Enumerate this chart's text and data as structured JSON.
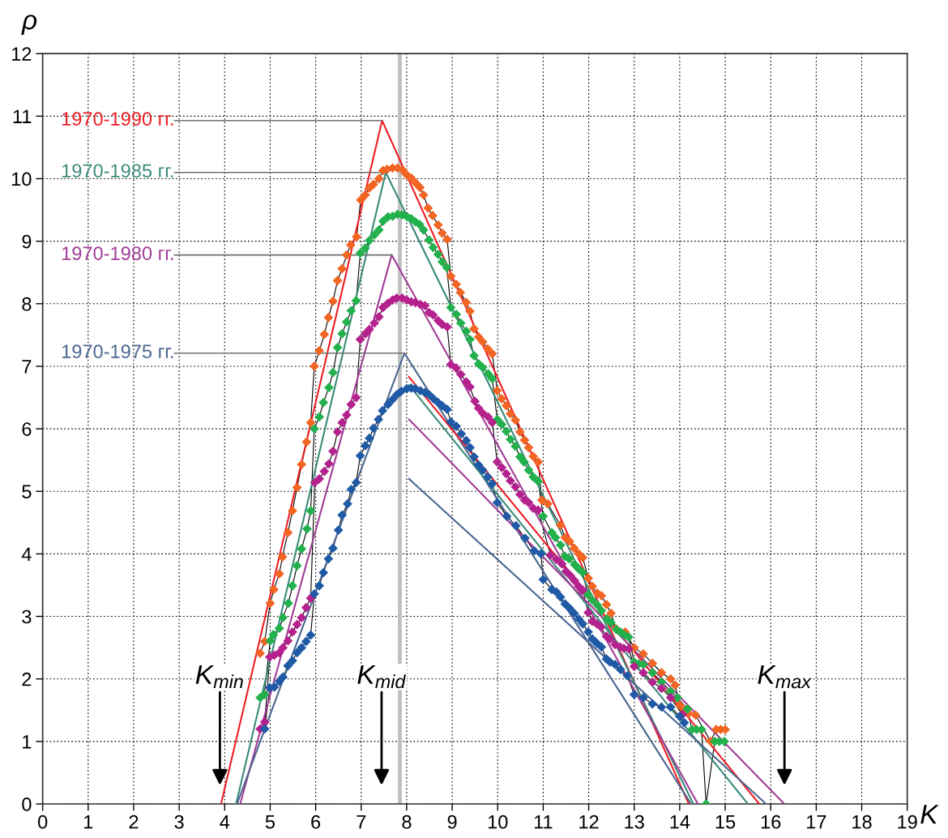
{
  "chart_data": {
    "type": "line",
    "xlabel": "K",
    "ylabel": "ρ",
    "xlim": [
      0,
      19
    ],
    "xticks": [
      0,
      1,
      2,
      3,
      4,
      5,
      6,
      7,
      8,
      9,
      10,
      11,
      12,
      13,
      14,
      15,
      16,
      17,
      18,
      19
    ],
    "ylim": [
      0,
      12
    ],
    "yticks": [
      0,
      1,
      2,
      3,
      4,
      5,
      6,
      7,
      8,
      9,
      10,
      11,
      12
    ],
    "grid": true,
    "legend": false,
    "series": [
      {
        "color": "#f26522",
        "marker": "diamond",
        "x": [
          4.78,
          4.88,
          5.0,
          5.08,
          5.2,
          5.27,
          5.39,
          5.49,
          5.59,
          5.69,
          5.8,
          5.89,
          5.97,
          6.08,
          6.19,
          6.28,
          6.38,
          6.48,
          6.58,
          6.68,
          6.77,
          6.9,
          6.99,
          7.09,
          7.18,
          7.27,
          7.39,
          7.48,
          7.57,
          7.69,
          7.8,
          7.92,
          8.0,
          8.1,
          8.2,
          8.29,
          8.37,
          8.47,
          8.57,
          8.69,
          8.78,
          8.89,
          8.97,
          9.09,
          9.18,
          9.31,
          9.39,
          9.48,
          9.58,
          9.67,
          9.78,
          9.88,
          9.99,
          10.09,
          10.19,
          10.28,
          10.39,
          10.49,
          10.59,
          10.68,
          10.78,
          10.89,
          10.97,
          11.1,
          11.38,
          11.48,
          11.58,
          11.68,
          11.78,
          11.87,
          11.99,
          12.08,
          12.19,
          12.28,
          12.39,
          12.49,
          12.6,
          12.8,
          13.0,
          13.2,
          13.4,
          13.6,
          13.8,
          13.9,
          14.0,
          14.1,
          14.2,
          14.35,
          14.68,
          14.8,
          14.9,
          15.0
        ],
        "values": [
          2.41,
          2.6,
          3.21,
          3.43,
          3.68,
          3.95,
          4.34,
          4.69,
          5.06,
          5.43,
          5.79,
          6.1,
          7.0,
          7.25,
          7.51,
          7.78,
          8.04,
          8.37,
          8.56,
          8.78,
          8.94,
          9.07,
          9.66,
          9.74,
          9.85,
          9.91,
          10.0,
          10.13,
          10.15,
          10.17,
          10.17,
          10.13,
          10.06,
          10.01,
          9.93,
          9.86,
          9.74,
          9.53,
          9.41,
          9.26,
          9.13,
          9.03,
          8.44,
          8.31,
          8.18,
          8.02,
          7.88,
          7.6,
          7.47,
          7.39,
          7.28,
          7.2,
          6.61,
          6.48,
          6.37,
          6.24,
          6.14,
          5.95,
          5.82,
          5.7,
          5.56,
          5.47,
          4.86,
          4.8,
          4.46,
          4.26,
          4.2,
          4.09,
          4.0,
          3.94,
          3.61,
          3.48,
          3.37,
          3.33,
          3.19,
          3.05,
          2.8,
          2.75,
          2.5,
          2.4,
          2.25,
          2.1,
          2.0,
          1.9,
          1.58,
          1.5,
          1.45,
          1.42,
          1.0,
          1.19,
          1.19,
          1.19
        ]
      },
      {
        "color": "#22b14c",
        "marker": "diamond",
        "x": [
          4.78,
          4.87,
          5.0,
          5.07,
          5.2,
          5.28,
          5.4,
          5.49,
          5.59,
          5.69,
          5.81,
          5.89,
          5.97,
          6.08,
          6.17,
          6.29,
          6.38,
          6.48,
          6.58,
          6.68,
          6.78,
          6.89,
          6.98,
          7.09,
          7.18,
          7.29,
          7.39,
          7.48,
          7.59,
          7.69,
          7.8,
          7.9,
          8.01,
          8.1,
          8.19,
          8.28,
          8.37,
          8.49,
          8.58,
          8.69,
          8.78,
          8.88,
          8.97,
          9.09,
          9.19,
          9.31,
          9.39,
          9.48,
          9.58,
          9.67,
          9.79,
          9.88,
          9.99,
          10.09,
          10.19,
          10.28,
          10.39,
          10.49,
          10.58,
          10.68,
          10.78,
          10.89,
          11.0,
          11.19,
          11.27,
          11.38,
          11.48,
          11.57,
          11.69,
          11.78,
          11.87,
          11.98,
          12.08,
          12.19,
          12.28,
          12.4,
          12.49,
          12.61,
          12.7,
          12.79,
          12.88,
          13.0,
          13.1,
          13.2,
          13.4,
          13.6,
          13.8,
          13.95,
          14.17,
          14.27,
          14.37,
          14.48,
          14.58,
          14.77,
          14.87,
          14.98
        ],
        "values": [
          1.7,
          1.75,
          2.61,
          2.71,
          2.81,
          2.98,
          3.21,
          3.49,
          3.81,
          4.08,
          4.4,
          4.69,
          6.0,
          6.19,
          6.42,
          6.66,
          6.9,
          7.3,
          7.52,
          7.71,
          7.89,
          8.05,
          8.81,
          8.89,
          9.01,
          9.1,
          9.18,
          9.32,
          9.39,
          9.4,
          9.43,
          9.42,
          9.39,
          9.36,
          9.31,
          9.27,
          9.18,
          9.02,
          8.9,
          8.79,
          8.67,
          8.58,
          7.94,
          7.83,
          7.69,
          7.56,
          7.43,
          7.17,
          7.04,
          6.98,
          6.88,
          6.8,
          6.15,
          6.07,
          5.96,
          5.83,
          5.72,
          5.55,
          5.47,
          5.34,
          5.23,
          5.16,
          4.6,
          4.34,
          4.26,
          4.14,
          3.96,
          3.92,
          3.83,
          3.76,
          3.7,
          3.35,
          3.26,
          3.18,
          3.09,
          2.96,
          2.9,
          2.79,
          2.75,
          2.7,
          2.67,
          2.27,
          2.24,
          2.23,
          2.1,
          1.95,
          1.8,
          1.7,
          1.52,
          1.19,
          1.19,
          1.19,
          0,
          1.0,
          1.0,
          1.0
        ]
      },
      {
        "color": "#b5218e",
        "marker": "diamond",
        "x": [
          4.78,
          4.88,
          4.99,
          5.09,
          5.2,
          5.28,
          5.39,
          5.49,
          5.59,
          5.69,
          5.79,
          5.89,
          5.98,
          6.08,
          6.19,
          6.29,
          6.38,
          6.48,
          6.58,
          6.68,
          6.78,
          6.89,
          6.98,
          7.09,
          7.18,
          7.29,
          7.39,
          7.48,
          7.59,
          7.69,
          7.78,
          7.9,
          8.0,
          8.1,
          8.19,
          8.3,
          8.4,
          8.49,
          8.58,
          8.69,
          8.78,
          8.89,
          8.97,
          9.09,
          9.19,
          9.31,
          9.39,
          9.5,
          9.58,
          9.67,
          9.79,
          9.88,
          9.99,
          10.09,
          10.19,
          10.28,
          10.39,
          10.49,
          10.59,
          10.68,
          10.78,
          10.89,
          11.16,
          11.29,
          11.41,
          11.5,
          11.6,
          11.69,
          11.78,
          11.87,
          11.99,
          12.08,
          12.18,
          12.27,
          12.39,
          12.47,
          12.58,
          12.69,
          12.77,
          12.88,
          13.0,
          13.2,
          13.4,
          13.6,
          13.8,
          14.06
        ],
        "values": [
          1.2,
          1.31,
          2.35,
          2.38,
          2.42,
          2.5,
          2.61,
          2.75,
          2.87,
          2.98,
          3.14,
          3.29,
          5.14,
          5.2,
          5.32,
          5.44,
          5.64,
          5.95,
          6.1,
          6.22,
          6.39,
          6.5,
          7.43,
          7.52,
          7.59,
          7.69,
          7.79,
          7.94,
          8.01,
          8.06,
          8.09,
          8.09,
          8.06,
          8.03,
          8.02,
          7.99,
          7.97,
          7.86,
          7.82,
          7.73,
          7.67,
          7.63,
          7.03,
          6.97,
          6.87,
          6.75,
          6.67,
          6.44,
          6.33,
          6.25,
          6.19,
          6.1,
          5.47,
          5.38,
          5.28,
          5.17,
          5.07,
          4.95,
          4.86,
          4.82,
          4.73,
          4.7,
          3.98,
          3.91,
          3.84,
          3.72,
          3.65,
          3.57,
          3.48,
          3.42,
          3.06,
          2.92,
          2.88,
          2.83,
          2.68,
          2.64,
          2.55,
          2.51,
          2.49,
          2.48,
          2.2,
          2.1,
          1.95,
          1.85,
          1.7,
          1.43
        ]
      },
      {
        "color": "#1f5aa6",
        "marker": "diamond",
        "x": [
          4.88,
          4.99,
          5.09,
          5.2,
          5.28,
          5.39,
          5.49,
          5.59,
          5.69,
          5.79,
          5.89,
          5.97,
          6.08,
          6.17,
          6.28,
          6.38,
          6.5,
          6.58,
          6.7,
          6.78,
          6.89,
          6.98,
          7.09,
          7.18,
          7.27,
          7.38,
          7.47,
          7.59,
          7.69,
          7.79,
          7.88,
          8.0,
          8.1,
          8.19,
          8.3,
          8.4,
          8.5,
          8.59,
          8.69,
          8.78,
          8.89,
          8.97,
          9.09,
          9.2,
          9.31,
          9.39,
          9.48,
          9.58,
          9.67,
          9.78,
          9.88,
          9.99,
          10.2,
          10.4,
          10.6,
          10.8,
          10.95,
          11.0,
          11.19,
          11.29,
          11.38,
          11.48,
          11.58,
          11.68,
          11.78,
          11.87,
          11.99,
          12.08,
          12.18,
          12.28,
          12.39,
          12.47,
          12.58,
          12.7,
          12.85,
          13.0,
          13.2,
          13.4,
          13.6,
          13.8,
          14.0,
          14.1
        ],
        "values": [
          1.2,
          1.86,
          1.87,
          1.96,
          2.03,
          2.21,
          2.29,
          2.42,
          2.5,
          2.6,
          2.7,
          3.36,
          3.49,
          3.7,
          3.92,
          4.09,
          4.38,
          4.62,
          4.8,
          5.03,
          5.14,
          5.57,
          5.73,
          5.85,
          6.01,
          6.15,
          6.29,
          6.39,
          6.47,
          6.55,
          6.6,
          6.64,
          6.65,
          6.64,
          6.61,
          6.58,
          6.54,
          6.48,
          6.42,
          6.37,
          6.31,
          6.11,
          6.04,
          5.92,
          5.81,
          5.7,
          5.55,
          5.42,
          5.34,
          5.23,
          5.12,
          4.82,
          4.6,
          4.45,
          4.25,
          4.05,
          4.0,
          3.59,
          3.43,
          3.39,
          3.31,
          3.2,
          3.13,
          3.05,
          2.96,
          2.88,
          2.75,
          2.64,
          2.57,
          2.51,
          2.32,
          2.27,
          2.23,
          2.15,
          2.05,
          1.75,
          1.7,
          1.6,
          1.55,
          1.55,
          1.4,
          1.3
        ]
      },
      {
        "name": "1970-1990 гг.",
        "color": "#ed1c24",
        "marker": "none",
        "x": [
          3.92,
          7.46,
          14.2
        ],
        "values": [
          0,
          10.93,
          0
        ]
      },
      {
        "name": "1970-1985 гг.",
        "color": "#3a8a7a",
        "marker": "none",
        "x": [
          4.25,
          7.54,
          14.3
        ],
        "values": [
          0,
          10.1,
          0
        ]
      },
      {
        "name": "1970-1980 гг.",
        "color": "#a03c96",
        "marker": "none",
        "x": [
          4.34,
          7.67,
          14.4
        ],
        "values": [
          0,
          8.78,
          0
        ]
      },
      {
        "name": "1970-1975 гг.",
        "color": "#4a6590",
        "marker": "none",
        "x": [
          4.27,
          7.95,
          14.25
        ],
        "values": [
          0,
          7.21,
          0
        ]
      },
      {
        "color": "#ed1c24",
        "marker": "none",
        "x": [
          8.05,
          15.75
        ],
        "values": [
          6.83,
          0
        ]
      },
      {
        "color": "#3a8a7a",
        "marker": "none",
        "x": [
          8.05,
          15.5
        ],
        "values": [
          6.7,
          0
        ]
      },
      {
        "color": "#a03c96",
        "marker": "none",
        "x": [
          8.05,
          16.3
        ],
        "values": [
          6.15,
          0
        ]
      },
      {
        "color": "#4a6590",
        "marker": "none",
        "x": [
          8.05,
          15.9
        ],
        "values": [
          5.2,
          0
        ]
      }
    ],
    "ref_lines": [
      {
        "axis": "x",
        "value": 7.85,
        "color": "#c0c0c0"
      }
    ],
    "annotations": [
      "K$_{min}$",
      "K$_{mid}$",
      "K$_{max}$"
    ]
  }
}
